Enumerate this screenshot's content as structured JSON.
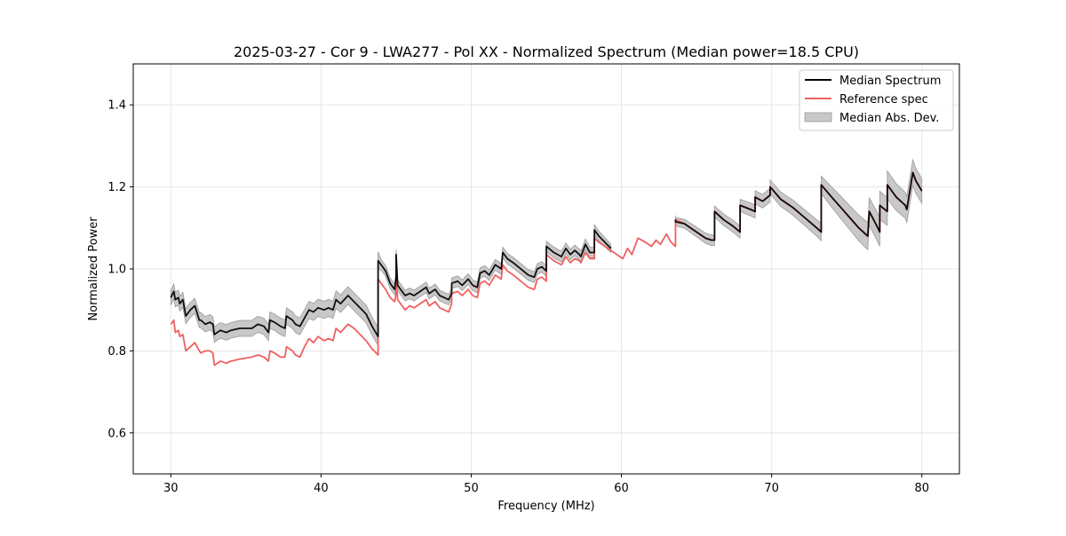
{
  "chart_data": {
    "type": "line",
    "title": "2025-03-27 - Cor 9 - LWA277 - Pol XX - Normalized Spectrum (Median power=18.5 CPU)",
    "xlabel": "Frequency (MHz)",
    "ylabel": "Normalized Power",
    "xlim": [
      27.5,
      82.5
    ],
    "ylim": [
      0.5,
      1.5
    ],
    "xticks": [
      30,
      40,
      50,
      60,
      70,
      80
    ],
    "xtick_labels": [
      "30",
      "40",
      "50",
      "60",
      "70",
      "80"
    ],
    "yticks": [
      0.6,
      0.8,
      1.0,
      1.2,
      1.4
    ],
    "ytick_labels": [
      "0.6",
      "0.8",
      "1.0",
      "1.2",
      "1.4"
    ],
    "grid": true,
    "legend_position": "upper-right",
    "legend": [
      {
        "label": "Median Spectrum",
        "kind": "line",
        "color": "#000000"
      },
      {
        "label": "Reference spec",
        "kind": "line",
        "color": "#f06060"
      },
      {
        "label": "Median Abs. Dev.",
        "kind": "band",
        "color": "#c8c8c8"
      }
    ],
    "series": [
      {
        "name": "Median Spectrum",
        "color": "#000000",
        "x": [
          30.0,
          30.2,
          30.3,
          30.5,
          30.6,
          30.8,
          31.0,
          31.3,
          31.6,
          31.9,
          32.0,
          32.3,
          32.6,
          32.8,
          32.9,
          33.3,
          33.7,
          34.0,
          34.6,
          35.4,
          35.8,
          36.2,
          36.5,
          36.6,
          36.9,
          37.3,
          37.6,
          37.7,
          38.1,
          38.3,
          38.6,
          38.9,
          39.2,
          39.5,
          39.8,
          40.2,
          40.5,
          40.8,
          41.0,
          41.3,
          41.8,
          42.2,
          42.6,
          43.0,
          43.4,
          43.8,
          43.8,
          44.0,
          44.3,
          44.6,
          44.9,
          45.0,
          45.0,
          45.1,
          45.4,
          45.6,
          45.9,
          46.2,
          46.6,
          47.0,
          47.2,
          47.6,
          47.9,
          48.2,
          48.5,
          48.7,
          48.7,
          49.1,
          49.4,
          49.8,
          50.1,
          50.4,
          50.6,
          50.9,
          51.2,
          51.6,
          52.0,
          52.1,
          52.4,
          52.8,
          53.3,
          53.8,
          54.2,
          54.4,
          54.7,
          55.0,
          55.0,
          55.5,
          56.0,
          56.3,
          56.6,
          56.9,
          57.2,
          57.3,
          57.6,
          57.9,
          58.2,
          58.2,
          58.5,
          58.9,
          59.3,
          null,
          63.6,
          63.6,
          64.2,
          64.8,
          65.2,
          65.6,
          66.0,
          66.2,
          66.2,
          66.8,
          67.4,
          67.9,
          67.9,
          68.6,
          68.9,
          68.9,
          69.4,
          69.9,
          69.9,
          70.6,
          71.4,
          72.2,
          73.0,
          73.3,
          73.3,
          74.0,
          74.6,
          75.2,
          75.8,
          76.4,
          76.5,
          77.0,
          77.2,
          77.2,
          77.7,
          77.7,
          78.3,
          78.9,
          79.0,
          79.4,
          79.6,
          80.0
        ],
        "values": [
          0.93,
          0.945,
          0.925,
          0.93,
          0.915,
          0.925,
          0.885,
          0.9,
          0.91,
          0.875,
          0.875,
          0.865,
          0.87,
          0.865,
          0.84,
          0.85,
          0.845,
          0.85,
          0.855,
          0.855,
          0.865,
          0.86,
          0.845,
          0.875,
          0.87,
          0.86,
          0.855,
          0.885,
          0.875,
          0.865,
          0.86,
          0.88,
          0.9,
          0.895,
          0.905,
          0.9,
          0.905,
          0.9,
          0.925,
          0.915,
          0.935,
          0.92,
          0.905,
          0.89,
          0.86,
          0.835,
          1.02,
          1.01,
          0.995,
          0.965,
          0.95,
          0.98,
          1.035,
          0.96,
          0.945,
          0.935,
          0.94,
          0.935,
          0.945,
          0.955,
          0.94,
          0.95,
          0.935,
          0.93,
          0.925,
          0.94,
          0.965,
          0.97,
          0.96,
          0.975,
          0.96,
          0.955,
          0.99,
          0.995,
          0.985,
          1.01,
          1.0,
          1.04,
          1.025,
          1.015,
          1.0,
          0.985,
          0.98,
          1.0,
          1.005,
          0.995,
          1.055,
          1.04,
          1.03,
          1.05,
          1.035,
          1.045,
          1.035,
          1.03,
          1.06,
          1.04,
          1.04,
          1.095,
          1.08,
          1.065,
          1.05,
          null,
          1.12,
          1.115,
          1.11,
          1.095,
          1.085,
          1.075,
          1.07,
          1.07,
          1.14,
          1.12,
          1.105,
          1.09,
          1.155,
          1.145,
          1.14,
          1.175,
          1.165,
          1.18,
          1.2,
          1.17,
          1.15,
          1.125,
          1.1,
          1.09,
          1.205,
          1.175,
          1.15,
          1.125,
          1.1,
          1.08,
          1.14,
          1.105,
          1.09,
          1.155,
          1.14,
          1.205,
          1.175,
          1.155,
          1.145,
          1.235,
          1.215,
          1.19
        ]
      },
      {
        "name": "Reference spec",
        "color": "#f06060",
        "x": [
          30.0,
          30.2,
          30.3,
          30.5,
          30.6,
          30.8,
          31.0,
          31.3,
          31.6,
          31.9,
          32.0,
          32.3,
          32.6,
          32.8,
          32.9,
          33.3,
          33.7,
          34.0,
          34.6,
          35.4,
          35.8,
          36.2,
          36.5,
          36.6,
          36.9,
          37.3,
          37.6,
          37.7,
          38.1,
          38.3,
          38.6,
          38.9,
          39.2,
          39.5,
          39.8,
          40.2,
          40.5,
          40.8,
          41.0,
          41.3,
          41.8,
          42.2,
          42.6,
          43.0,
          43.4,
          43.8,
          43.8,
          44.0,
          44.3,
          44.6,
          44.9,
          45.0,
          45.0,
          45.1,
          45.4,
          45.6,
          45.9,
          46.2,
          46.6,
          47.0,
          47.2,
          47.6,
          47.9,
          48.2,
          48.5,
          48.7,
          48.7,
          49.1,
          49.4,
          49.8,
          50.1,
          50.4,
          50.6,
          50.9,
          51.2,
          51.6,
          52.0,
          52.1,
          52.4,
          52.8,
          53.3,
          53.8,
          54.2,
          54.4,
          54.7,
          55.0,
          55.0,
          55.5,
          56.0,
          56.3,
          56.6,
          56.9,
          57.2,
          57.3,
          57.6,
          57.9,
          58.2,
          58.2,
          58.5,
          58.9,
          59.3,
          59.7,
          60.1,
          60.4,
          60.7,
          61.1,
          61.6,
          62.0,
          62.3,
          62.6,
          63.0,
          63.3,
          63.6,
          63.6,
          64.2,
          64.8,
          65.2,
          65.6,
          66.0,
          66.2,
          66.2,
          66.8,
          67.4,
          67.9,
          67.9,
          68.6,
          68.9,
          68.9,
          69.4,
          69.9,
          69.9,
          70.6,
          71.4,
          72.2,
          73.0,
          73.3,
          73.3,
          74.0,
          74.6,
          75.2,
          75.8,
          76.4,
          76.5,
          77.0,
          77.2,
          77.2,
          77.7,
          77.7,
          78.3,
          78.9,
          79.0,
          79.4,
          79.6,
          80.0
        ],
        "values": [
          0.865,
          0.875,
          0.845,
          0.85,
          0.835,
          0.84,
          0.8,
          0.81,
          0.82,
          0.8,
          0.795,
          0.8,
          0.8,
          0.795,
          0.765,
          0.775,
          0.77,
          0.775,
          0.78,
          0.785,
          0.79,
          0.785,
          0.775,
          0.8,
          0.795,
          0.785,
          0.785,
          0.81,
          0.8,
          0.79,
          0.785,
          0.81,
          0.83,
          0.82,
          0.835,
          0.825,
          0.83,
          0.825,
          0.855,
          0.845,
          0.865,
          0.855,
          0.84,
          0.825,
          0.805,
          0.79,
          0.975,
          0.965,
          0.95,
          0.93,
          0.92,
          0.94,
          0.98,
          0.925,
          0.91,
          0.9,
          0.91,
          0.905,
          0.915,
          0.925,
          0.91,
          0.92,
          0.905,
          0.9,
          0.895,
          0.915,
          0.94,
          0.945,
          0.935,
          0.95,
          0.935,
          0.93,
          0.965,
          0.97,
          0.96,
          0.985,
          0.975,
          1.01,
          0.995,
          0.985,
          0.97,
          0.955,
          0.95,
          0.975,
          0.98,
          0.97,
          1.035,
          1.02,
          1.01,
          1.03,
          1.015,
          1.025,
          1.02,
          1.015,
          1.04,
          1.025,
          1.025,
          1.075,
          1.065,
          1.055,
          1.045,
          1.035,
          1.025,
          1.05,
          1.035,
          1.075,
          1.065,
          1.055,
          1.07,
          1.06,
          1.085,
          1.065,
          1.055,
          1.12,
          1.11,
          1.095,
          1.085,
          1.075,
          1.07,
          1.07,
          1.14,
          1.12,
          1.105,
          1.09,
          1.155,
          1.145,
          1.14,
          1.175,
          1.165,
          1.18,
          1.2,
          1.17,
          1.15,
          1.125,
          1.1,
          1.09,
          1.205,
          1.175,
          1.15,
          1.125,
          1.1,
          1.08,
          1.14,
          1.105,
          1.09,
          1.155,
          1.14,
          1.205,
          1.175,
          1.155,
          1.145,
          1.235,
          1.215,
          1.19
        ]
      }
    ],
    "band": {
      "name": "Median Abs. Dev.",
      "based_on": "Median Spectrum",
      "half_width_x": [
        30,
        43.8,
        44,
        58,
        59.5,
        63.5,
        66,
        73,
        74.5,
        77,
        80
      ],
      "half_width": [
        0.018,
        0.022,
        0.013,
        0.013,
        0.01,
        0.01,
        0.013,
        0.02,
        0.027,
        0.035,
        0.03
      ]
    }
  }
}
